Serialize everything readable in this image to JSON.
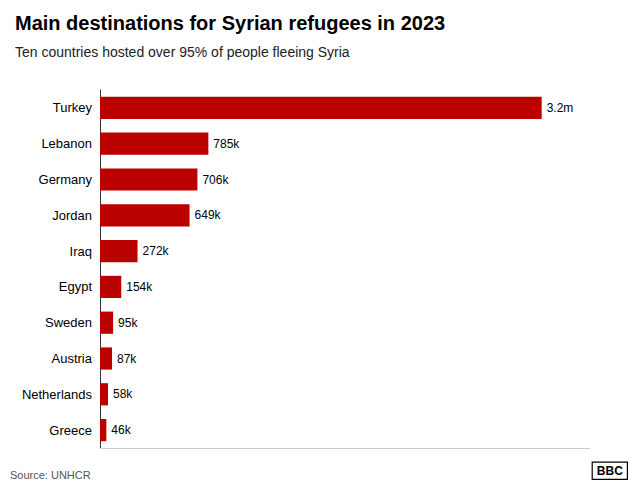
{
  "chart_data": {
    "type": "bar",
    "title": "Main destinations for Syrian refugees in 2023",
    "subtitle": "Ten countries hosted over 95% of people fleeing Syria",
    "annotations": [
      "Source: UNHCR",
      "BBC"
    ],
    "categories": [
      "Turkey",
      "Lebanon",
      "Germany",
      "Jordan",
      "Iraq",
      "Egypt",
      "Sweden",
      "Austria",
      "Netherlands",
      "Greece"
    ],
    "values": [
      3200000,
      785000,
      706000,
      649000,
      272000,
      154000,
      95000,
      87000,
      58000,
      46000
    ],
    "value_labels": [
      "3.2m",
      "785k",
      "706k",
      "649k",
      "272k",
      "154k",
      "95k",
      "87k",
      "58k",
      "46k"
    ],
    "color": "#bb0000",
    "orientation": "horizontal",
    "xlim": [
      0,
      3550000
    ],
    "data_labels": true,
    "tick_labels": "y",
    "grid": false
  }
}
